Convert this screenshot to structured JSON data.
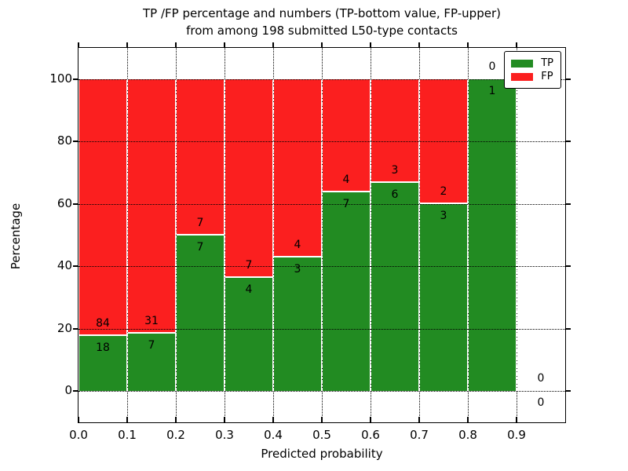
{
  "title": {
    "line1": "TP /FP percentage and numbers (TP-bottom value, FP-upper)",
    "line2": "from among 198 submitted L50-type contacts"
  },
  "chart_data": {
    "type": "bar",
    "stacked": true,
    "title": "TP /FP percentage and numbers (TP-bottom value, FP-upper) from among 198 submitted L50-type contacts",
    "xlabel": "Predicted probability",
    "ylabel": "Percentage",
    "total_contacts": 198,
    "bin_start": 0.0,
    "bin_width": 0.1,
    "categories": [
      "0.0-0.1",
      "0.1-0.2",
      "0.2-0.3",
      "0.3-0.4",
      "0.4-0.5",
      "0.5-0.6",
      "0.6-0.7",
      "0.7-0.8",
      "0.8-0.9",
      "0.9-1.0"
    ],
    "series": [
      {
        "name": "TP",
        "color": "#228b22",
        "counts": [
          18,
          7,
          7,
          4,
          3,
          7,
          6,
          3,
          1,
          0
        ]
      },
      {
        "name": "FP",
        "color": "#fb1f1f",
        "counts": [
          84,
          31,
          7,
          7,
          4,
          4,
          3,
          2,
          0,
          0
        ]
      }
    ],
    "bar_total_percent": 100,
    "xlim": [
      0.0,
      1.0
    ],
    "ylim": [
      -10,
      110
    ],
    "x_tick_labels": [
      "0.0",
      "0.1",
      "0.2",
      "0.3",
      "0.4",
      "0.5",
      "0.6",
      "0.7",
      "0.8",
      "0.9"
    ],
    "x_tick_values": [
      0.0,
      0.1,
      0.2,
      0.3,
      0.4,
      0.5,
      0.6,
      0.7,
      0.8,
      0.9
    ],
    "y_tick_labels": [
      "0",
      "20",
      "40",
      "60",
      "80",
      "100"
    ],
    "y_tick_values": [
      0,
      20,
      40,
      60,
      80,
      100
    ],
    "grid": true,
    "legend": {
      "position": "upper right",
      "entries": [
        {
          "label": "TP",
          "color": "#228b22"
        },
        {
          "label": "FP",
          "color": "#fb1f1f"
        }
      ]
    }
  }
}
